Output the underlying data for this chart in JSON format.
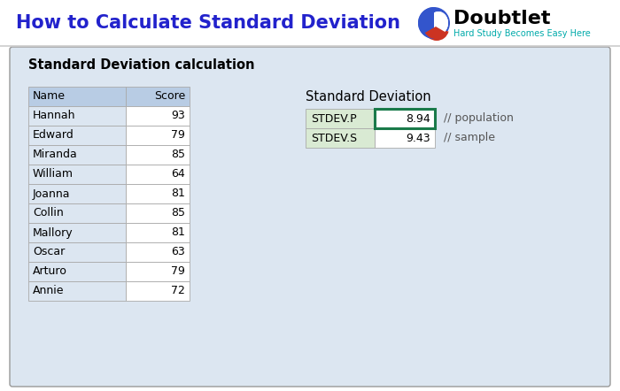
{
  "title": "How to Calculate Standard Deviation",
  "title_color": "#2222cc",
  "subtitle": "Hard Study Becomes Easy Here",
  "subtitle_color": "#00AAAA",
  "bg_color": "#ffffff",
  "panel_color": "#dce6f1",
  "panel_border_color": "#999999",
  "panel_title": "Standard Deviation calculation",
  "names": [
    "Name",
    "Hannah",
    "Edward",
    "Miranda",
    "William",
    "Joanna",
    "Collin",
    "Mallory",
    "Oscar",
    "Arturo",
    "Annie"
  ],
  "scores": [
    "Score",
    93,
    79,
    85,
    64,
    81,
    85,
    81,
    63,
    79,
    72
  ],
  "sd_title": "Standard Deviation",
  "stdev_p_label": "STDEV.P",
  "stdev_p_value": "8.94",
  "stdev_s_label": "STDEV.S",
  "stdev_s_value": "9.43",
  "pop_comment": "// population",
  "sample_comment": "// sample",
  "header_fill": "#b8cce4",
  "cell_fill": "#dce6f1",
  "score_cell_fill": "#ffffff",
  "green_border": "#1a7a4a",
  "stdev_label_fill": "#d9ead3",
  "stdev_value_fill": "#ffffff",
  "table_line_color": "#aaaaaa",
  "separator_color": "#cccccc",
  "logo_text": "oubtlet",
  "logo_d_color": "#3355cc",
  "logo_red_color": "#cc3322",
  "logo_subtitle_color": "#00AAAA"
}
